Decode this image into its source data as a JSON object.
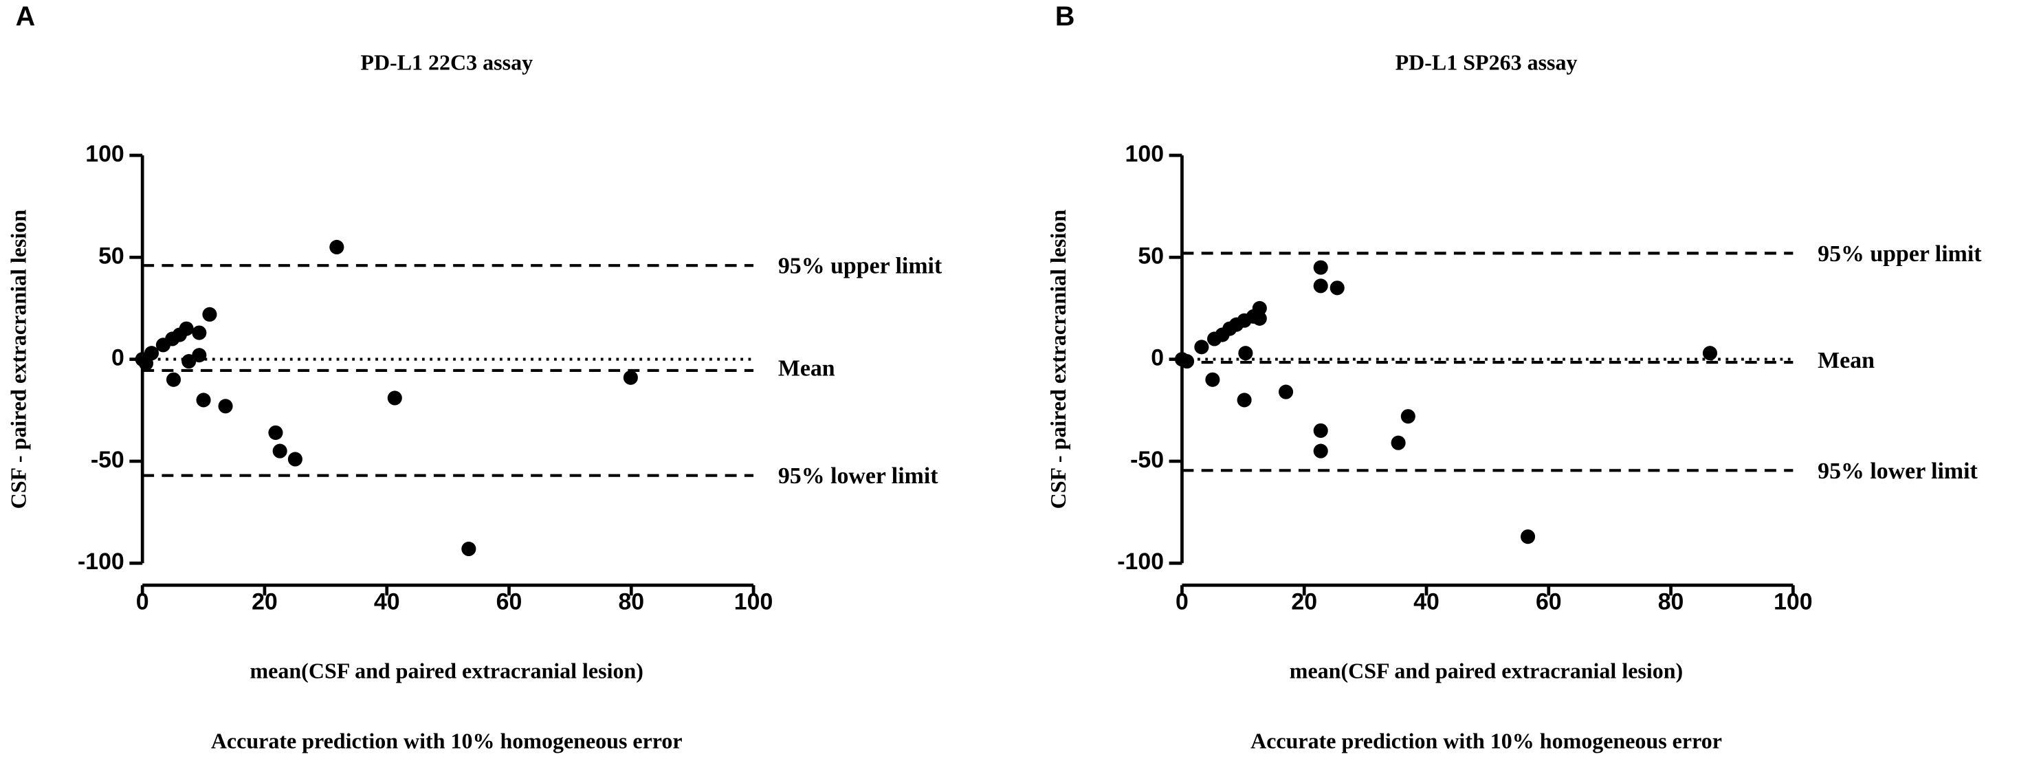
{
  "chart_data": [
    {
      "type": "scatter",
      "panel": "A",
      "title": "PD-L1 22C3 assay",
      "xlabel": "mean(CSF and paired extracranial lesion)",
      "ylabel": "CSF - paired extracranial lesion",
      "caption": "Accurate prediction with 10% homogeneous error",
      "xlim": [
        0,
        100
      ],
      "ylim": [
        -100,
        100
      ],
      "xticks": [
        0,
        20,
        40,
        60,
        80,
        100
      ],
      "yticks": [
        -100,
        -50,
        0,
        50,
        100
      ],
      "color": "#000000",
      "x": [
        0,
        0.6,
        1.5,
        3.4,
        4.9,
        5.1,
        6.1,
        7.2,
        7.6,
        9.3,
        9.3,
        10,
        11,
        13.6,
        21.8,
        22.5,
        25,
        31.8,
        41.3,
        79.9,
        53.4
      ],
      "values": [
        0,
        -2,
        3,
        7,
        10,
        -10,
        12,
        15,
        -1,
        13,
        2,
        -20,
        22,
        -23,
        -36,
        -45,
        -49,
        55,
        -19,
        -9,
        -93
      ],
      "hlines": [
        {
          "value": 46,
          "label": "95% upper limit",
          "style": "dashed"
        },
        {
          "value": -5.5,
          "label": "Mean",
          "style": "dashed"
        },
        {
          "value": 0,
          "style": "dotted"
        },
        {
          "value": -57,
          "label": "95% lower limit",
          "style": "dashed"
        }
      ]
    },
    {
      "type": "scatter",
      "panel": "B",
      "title": "PD-L1 SP263 assay",
      "xlabel": "mean(CSF and paired extracranial lesion)",
      "ylabel": "CSF - paired extracranial lesion",
      "caption": "Accurate prediction with 10% homogeneous error",
      "xlim": [
        0,
        100
      ],
      "ylim": [
        -100,
        100
      ],
      "xticks": [
        0,
        20,
        40,
        60,
        80,
        100
      ],
      "yticks": [
        -100,
        -50,
        0,
        50,
        100
      ],
      "color": "#000000",
      "x": [
        0,
        0.8,
        3.2,
        5,
        5.3,
        6.6,
        7.8,
        8.9,
        10.2,
        10.4,
        10.2,
        11.7,
        12.7,
        12.7,
        22.7,
        22.7,
        25.4,
        22.7,
        22.7,
        17,
        35.4,
        37,
        56.6,
        86.4
      ],
      "values": [
        0,
        -1,
        6,
        -10,
        10,
        12,
        15,
        17,
        19,
        3,
        -20,
        21,
        25,
        20,
        45,
        36,
        35,
        -35,
        -45,
        -16,
        -41,
        -28,
        -87,
        3
      ],
      "hlines": [
        {
          "value": 52,
          "label": "95% upper limit",
          "style": "dashed"
        },
        {
          "value": -1.5,
          "label": "Mean",
          "style": "dashed"
        },
        {
          "value": 0,
          "style": "dotted"
        },
        {
          "value": -54.5,
          "label": "95% lower limit",
          "style": "dashed"
        }
      ]
    }
  ]
}
